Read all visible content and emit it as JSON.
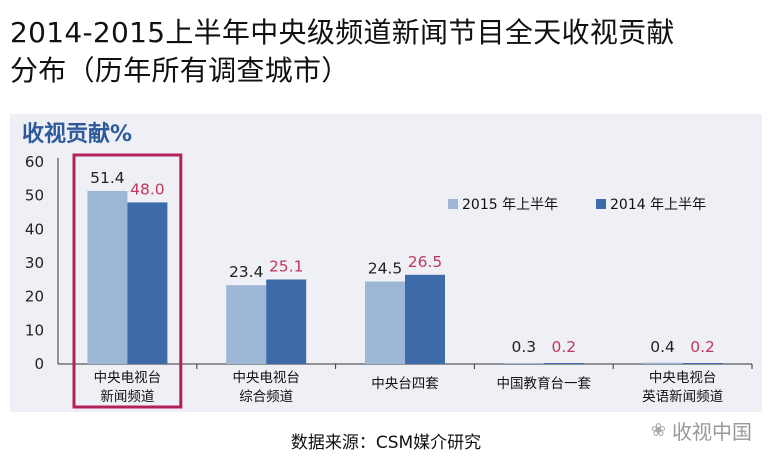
{
  "title": {
    "line1": "2014-2015上半年中央级频道新闻节目全天收视贡献",
    "line2": "分布（历年所有调查城市）"
  },
  "source": "数据来源：CSM媒介研究",
  "watermark": "收视中国",
  "colors": {
    "series_2015": "#9db6d6",
    "series_2014": "#3d6aa8",
    "label_2015": "#222222",
    "label_2014": "#c0385a",
    "highlight": "#b5205b",
    "ylabel": "#2e5a9c"
  },
  "chart_data": {
    "type": "bar",
    "ylabel": "收视贡献%",
    "ylim": [
      0,
      60
    ],
    "yticks": [
      0,
      10,
      20,
      30,
      40,
      50,
      60
    ],
    "categories": [
      [
        "中央电视台",
        "新闻频道"
      ],
      [
        "中央电视台",
        "综合频道"
      ],
      [
        "中央台四套"
      ],
      [
        "中国教育台一套"
      ],
      [
        "中央电视台",
        "英语新闻频道"
      ]
    ],
    "series": [
      {
        "name": "2015 年上半年",
        "values": [
          51.4,
          23.4,
          24.5,
          0.3,
          0.4
        ],
        "labels": [
          "51.4",
          "23.4",
          "24.5",
          "0.3",
          "0.4"
        ]
      },
      {
        "name": "2014 年上半年",
        "values": [
          48.0,
          25.1,
          26.5,
          0.2,
          0.2
        ],
        "labels": [
          "48.0",
          "25.1",
          "26.5",
          "0.2",
          "0.2"
        ]
      }
    ],
    "highlighted_category": 0,
    "legend_position": "right"
  }
}
